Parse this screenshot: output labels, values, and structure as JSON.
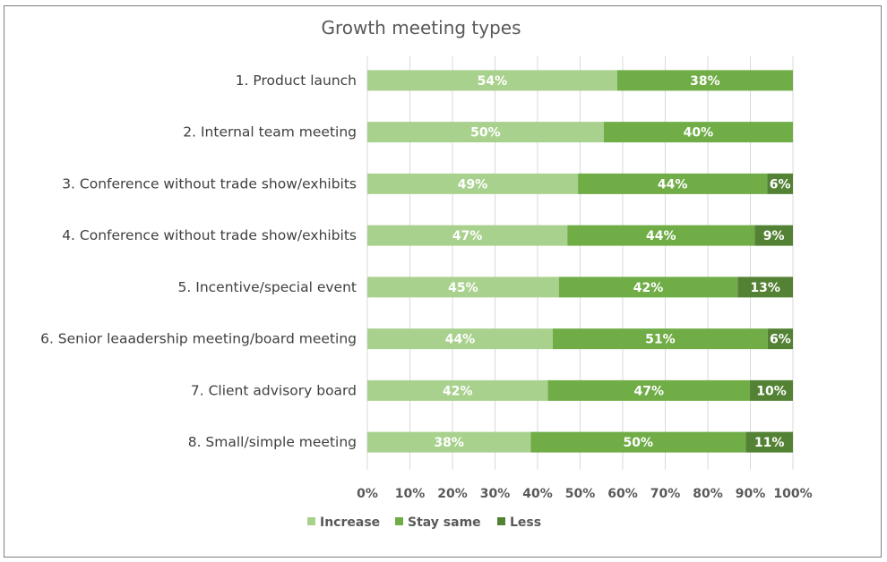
{
  "chart_data": {
    "type": "bar",
    "orientation": "horizontal",
    "stacked": "percent",
    "title": "Growth meeting types",
    "xlabel": "",
    "ylabel": "",
    "xlim": [
      0,
      100
    ],
    "grid": true,
    "legend_position": "bottom",
    "categories": [
      "1. Product launch",
      "2. Internal team meeting",
      "3. Conference without trade show/exhibits",
      "4. Conference without trade show/exhibits",
      "5. Incentive/special event",
      "6. Senior leaadership meeting/board meeting",
      "7. Client advisory board",
      "8. Small/simple meeting"
    ],
    "series": [
      {
        "name": "Increase",
        "color": "#a9d18e",
        "values": [
          54,
          50,
          49,
          47,
          45,
          44,
          42,
          38
        ]
      },
      {
        "name": "Stay same",
        "color": "#70ad47",
        "values": [
          38,
          40,
          44,
          44,
          42,
          51,
          47,
          50
        ]
      },
      {
        "name": "Less",
        "color": "#548235",
        "values": [
          null,
          null,
          6,
          9,
          13,
          6,
          10,
          11
        ]
      }
    ],
    "x_ticks": [
      "0%",
      "10%",
      "20%",
      "30%",
      "40%",
      "50%",
      "60%",
      "70%",
      "80%",
      "90%",
      "100%"
    ],
    "value_label_suffix": "%"
  }
}
